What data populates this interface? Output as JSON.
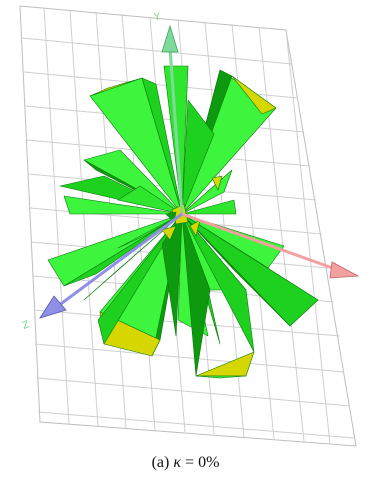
{
  "caption": {
    "prefix": "(a)",
    "symbol": "κ",
    "equals": "=",
    "value": "0%"
  },
  "axes": {
    "y_label": "Y",
    "z_label": "Z"
  },
  "colors": {
    "grid": "#c8c8c8",
    "cone_light": "#3cf53c",
    "cone_mid": "#1fd11f",
    "cone_dark": "#0e9a0e",
    "cone_tip": "#d6d600",
    "y_axis": "#7fd99a",
    "x_axis": "#f2a0a0",
    "z_axis": "#8f8fe6"
  }
}
